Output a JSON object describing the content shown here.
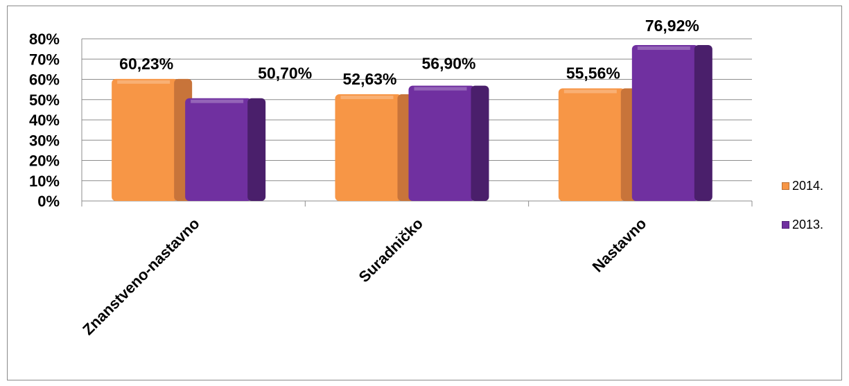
{
  "chart_data": {
    "type": "bar",
    "categories": [
      "Znanstveno-nastavno",
      "Suradničko",
      "Nastavno"
    ],
    "series": [
      {
        "name": "2014.",
        "values": [
          60.23,
          52.63,
          55.56
        ],
        "labels": [
          "60,23%",
          "52,63%",
          "55,56%"
        ],
        "color": "#f79646",
        "side_color": "#c8743a"
      },
      {
        "name": "2013.",
        "values": [
          50.7,
          56.9,
          76.92
        ],
        "labels": [
          "50,70%",
          "56,90%",
          "76,92%"
        ],
        "color": "#7030a0",
        "side_color": "#4a1f6b"
      }
    ],
    "y_ticks": [
      "0%",
      "10%",
      "20%",
      "30%",
      "40%",
      "50%",
      "60%",
      "70%",
      "80%"
    ],
    "ylim": [
      0,
      80
    ],
    "grid": true,
    "legend": "right",
    "xlabel": "",
    "ylabel": "",
    "title": ""
  }
}
